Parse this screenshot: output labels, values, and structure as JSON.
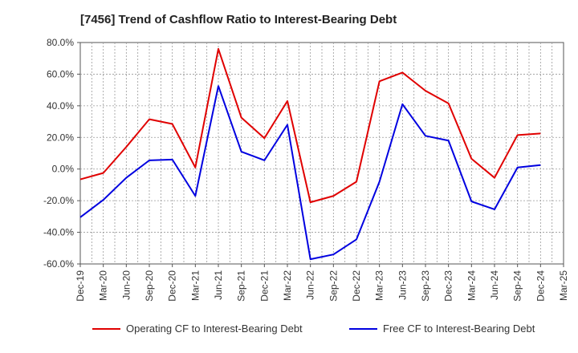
{
  "chart_data": {
    "type": "line",
    "title": "[7456]  Trend of Cashflow Ratio to Interest-Bearing Debt",
    "xlabel": "",
    "ylabel": "",
    "ylim": [
      -60,
      80
    ],
    "y_ticks": [
      -60,
      -40,
      -20,
      0,
      20,
      40,
      60,
      80
    ],
    "y_tick_labels": [
      "-60.0%",
      "-40.0%",
      "-20.0%",
      "0.0%",
      "20.0%",
      "40.0%",
      "60.0%",
      "80.0%"
    ],
    "x_tick_labels": [
      "Dec-19",
      "Mar-20",
      "Jun-20",
      "Sep-20",
      "Dec-20",
      "Mar-21",
      "Jun-21",
      "Sep-21",
      "Dec-21",
      "Mar-22",
      "Jun-22",
      "Sep-22",
      "Dec-22",
      "Mar-23",
      "Jun-23",
      "Sep-23",
      "Dec-23",
      "Mar-24",
      "Jun-24",
      "Sep-24",
      "Dec-24",
      "Mar-25"
    ],
    "grid": true,
    "legend_position": "bottom",
    "series": [
      {
        "name": "Operating CF to Interest-Bearing Debt",
        "color": "#e00000",
        "points": [
          [
            0,
            -6.5
          ],
          [
            1,
            -2.5
          ],
          [
            2,
            14
          ],
          [
            3,
            31.5
          ],
          [
            4,
            28.5
          ],
          [
            5,
            1
          ],
          [
            6,
            76
          ],
          [
            7,
            32.5
          ],
          [
            8,
            19.5
          ],
          [
            9,
            43
          ],
          [
            10,
            -21
          ],
          [
            11,
            -17
          ],
          [
            12,
            -8
          ],
          [
            13,
            55.5
          ],
          [
            14,
            61
          ],
          [
            15,
            49.5
          ],
          [
            16,
            41.5
          ],
          [
            17,
            6.5
          ],
          [
            18,
            -5.5
          ],
          [
            19,
            21.5
          ],
          [
            20,
            22.5
          ]
        ]
      },
      {
        "name": "Free CF to Interest-Bearing Debt",
        "color": "#0000e0",
        "points": [
          [
            0,
            -30.5
          ],
          [
            1,
            -19.5
          ],
          [
            2,
            -5.5
          ],
          [
            3,
            5.5
          ],
          [
            4,
            6
          ],
          [
            5,
            -17
          ],
          [
            6,
            52.5
          ],
          [
            7,
            11
          ],
          [
            8,
            5.5
          ],
          [
            9,
            28
          ],
          [
            10,
            -57
          ],
          [
            11,
            -54
          ],
          [
            12,
            -44.5
          ],
          [
            13,
            -8
          ],
          [
            14,
            41
          ],
          [
            15,
            21
          ],
          [
            16,
            18
          ],
          [
            17,
            -20.5
          ],
          [
            18,
            -25.5
          ],
          [
            19,
            1
          ],
          [
            20,
            2.5
          ]
        ]
      }
    ]
  }
}
